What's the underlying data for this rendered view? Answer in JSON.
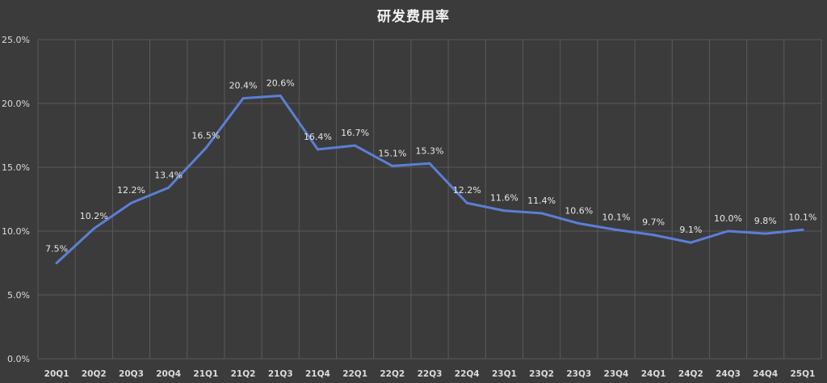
{
  "chart_data": {
    "type": "line",
    "title": "研发费用率",
    "categories": [
      "20Q1",
      "20Q2",
      "20Q3",
      "20Q4",
      "21Q1",
      "21Q2",
      "21Q3",
      "21Q4",
      "22Q1",
      "22Q2",
      "22Q3",
      "22Q4",
      "23Q1",
      "23Q2",
      "23Q3",
      "23Q4",
      "24Q1",
      "24Q2",
      "24Q3",
      "24Q4",
      "25Q1"
    ],
    "series": [
      {
        "values": [
          7.5,
          10.2,
          12.2,
          13.4,
          16.5,
          20.4,
          20.6,
          16.4,
          16.7,
          15.1,
          15.3,
          12.2,
          11.6,
          11.4,
          10.6,
          10.1,
          9.7,
          9.1,
          10.0,
          9.8,
          10.1
        ],
        "labels": [
          "7.5%",
          "10.2%",
          "12.2%",
          "13.4%",
          "16.5%",
          "20.4%",
          "20.6%",
          "16.4%",
          "16.7%",
          "15.1%",
          "15.3%",
          "12.2%",
          "11.6%",
          "11.4%",
          "10.6%",
          "10.1%",
          "9.7%",
          "9.1%",
          "10.0%",
          "9.8%",
          "10.1%"
        ],
        "color": "#5b7fd6"
      }
    ],
    "yticks": [
      "0.0%",
      "5.0%",
      "10.0%",
      "15.0%",
      "20.0%",
      "25.0%"
    ],
    "ylim": [
      0,
      25
    ],
    "grid": true,
    "colors": {
      "background": "#3b3b3b",
      "grid": "#5a5a5a",
      "line": "#5b7fd6",
      "text": "#dcdcdc"
    }
  }
}
